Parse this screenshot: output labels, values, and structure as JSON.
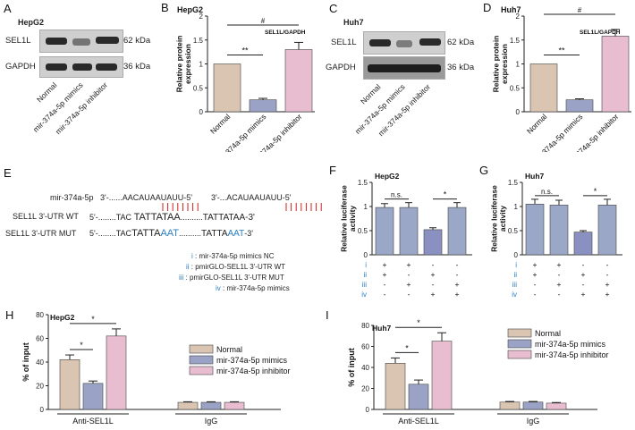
{
  "panels": {
    "A": {
      "letter": "A",
      "title": "HepG2",
      "rows": [
        {
          "name": "SEL1L",
          "size": "62 kDa"
        },
        {
          "name": "GAPDH",
          "size": "36 kDa"
        }
      ],
      "lanes": [
        "Normal",
        "mir-374a-5p mimics",
        "mir-374a-5p inhibitor"
      ]
    },
    "C": {
      "letter": "C",
      "title": "Huh7",
      "rows": [
        {
          "name": "SEL1L",
          "size": "62 kDa"
        },
        {
          "name": "GAPDH",
          "size": "36 kDa"
        }
      ],
      "lanes": [
        "Normal",
        "mir-374a-5p mimics",
        "mir-374a-5p inhibitor"
      ]
    },
    "E": {
      "letter": "E",
      "mir_label": "mir-374a-5p",
      "mir_seq1": "3'-......AACAUAAUAUU-5'",
      "mir_seq2": "3'-...ACAUAAUAUU-5'",
      "wt_label": "SEL1L 3'-UTR WT",
      "wt_seq1_pre": "5'-........TAC ",
      "wt_seq1_core": "TATTATAA",
      "wt_seq1_post": "..........",
      "wt_seq2": "TATTATAA-3'",
      "mut_label": "SEL1L 3'-UTR MUT",
      "mut_seq1_pre": "5'-........TAC",
      "mut_seq1_core": "TATTA",
      "mut_seq1_mut": "AAT",
      "mut_seq1_post": "..........",
      "mut_seq2_core": "TATTA",
      "mut_seq2_mut": "AAT",
      "mut_seq2_post": "-3'",
      "legend": [
        {
          "num": "i",
          "text": ": mir-374a-5p mimics NC"
        },
        {
          "num": "ii",
          "text": ": pmirGLO-SEL1L 3'-UTR WT"
        },
        {
          "num": "iii",
          "text": ": pmirGLO-SEL1L 3'-UTR MUT"
        },
        {
          "num": "iv",
          "text": ": mir-374a-5p mimics"
        }
      ]
    }
  },
  "colors": {
    "normal": "#d9c5b2",
    "mimics": "#9aa2c6",
    "inhibitor": "#e8bdd0",
    "luc": "#9aa7c6",
    "luc_dark": "#8a91c0",
    "blue_text": "#2a7fc1",
    "red_tick": "#d02020"
  },
  "chart_data": [
    {
      "id": "B",
      "letter": "B",
      "type": "bar",
      "title": "HepG2",
      "annotation": "SEL1L/GAPDH",
      "ylabel": "Relative protein expression",
      "ylim": [
        0,
        2
      ],
      "yticks": [
        "0",
        "0.5",
        "1",
        "1.5",
        "2"
      ],
      "categories": [
        "Normal",
        "mir-374a-5p mimics",
        "mir-374a-5p inhibitor"
      ],
      "values": [
        1.0,
        0.25,
        1.3
      ],
      "errors": [
        0,
        0.03,
        0.15
      ],
      "sig": [
        {
          "label": "**"
        },
        {
          "label": "#"
        }
      ]
    },
    {
      "id": "D",
      "letter": "D",
      "type": "bar",
      "title": "Huh7",
      "annotation": "SEL1L/GAPDH",
      "ylabel": "Relative protein expression",
      "ylim": [
        0,
        2
      ],
      "yticks": [
        "0",
        "0.5",
        "1",
        "1.5",
        "2"
      ],
      "categories": [
        "Normal",
        "mir-374a-5p mimics",
        "mir-374a-5p inhibitor"
      ],
      "values": [
        1.0,
        0.25,
        1.58
      ],
      "errors": [
        0,
        0.02,
        0.14
      ],
      "sig": [
        {
          "label": "**"
        },
        {
          "label": "#"
        }
      ]
    },
    {
      "id": "F",
      "letter": "F",
      "type": "bar",
      "title": "HepG2",
      "ylabel": "Relative luciferase activity",
      "ylim": [
        0,
        1.5
      ],
      "yticks": [
        "0",
        "0.5",
        "1",
        "1.5"
      ],
      "values": [
        0.98,
        0.98,
        0.52,
        0.98
      ],
      "errors": [
        0.08,
        0.1,
        0.04,
        0.1
      ],
      "sig": [
        {
          "label": "n.s."
        },
        {
          "label": "*"
        }
      ],
      "matrix_rows": [
        "i",
        "ii",
        "iii",
        "iv"
      ],
      "matrix": [
        [
          "+",
          "+",
          "-",
          "-"
        ],
        [
          "+",
          "-",
          "+",
          "-"
        ],
        [
          "-",
          "+",
          "-",
          "+"
        ],
        [
          "-",
          "-",
          "+",
          "+"
        ]
      ]
    },
    {
      "id": "G",
      "letter": "G",
      "type": "bar",
      "title": "Huh7",
      "ylabel": "Relative luciferase activity",
      "ylim": [
        0,
        1.5
      ],
      "yticks": [
        "0",
        "0.5",
        "1",
        "1.5"
      ],
      "values": [
        1.05,
        1.03,
        0.47,
        1.03
      ],
      "errors": [
        0.1,
        0.1,
        0.03,
        0.12
      ],
      "sig": [
        {
          "label": "n.s."
        },
        {
          "label": "*"
        }
      ],
      "matrix_rows": [
        "i",
        "ii",
        "iii",
        "iv"
      ],
      "matrix": [
        [
          "+",
          "+",
          "-",
          "-"
        ],
        [
          "+",
          "-",
          "+",
          "-"
        ],
        [
          "-",
          "+",
          "-",
          "+"
        ],
        [
          "-",
          "-",
          "+",
          "+"
        ]
      ]
    },
    {
      "id": "H",
      "letter": "H",
      "type": "bar",
      "title": "HepG2",
      "ylabel": "% of input",
      "ylim": [
        0,
        80
      ],
      "yticks": [
        "0",
        "20",
        "40",
        "60",
        "80"
      ],
      "groups": [
        "Anti-SEL1L",
        "IgG"
      ],
      "series": [
        {
          "name": "Normal",
          "values": [
            42,
            6
          ],
          "errors": [
            4,
            0.5
          ]
        },
        {
          "name": "mir-374a-5p mimics",
          "values": [
            22,
            6
          ],
          "errors": [
            2,
            0.5
          ]
        },
        {
          "name": "mir-374a-5p inhibitor",
          "values": [
            62,
            6
          ],
          "errors": [
            6,
            0.5
          ]
        }
      ],
      "sig": [
        {
          "label": "*"
        },
        {
          "label": "*"
        }
      ]
    },
    {
      "id": "I",
      "letter": "I",
      "type": "bar",
      "title": "Huh7",
      "ylabel": "% of input",
      "ylim": [
        0,
        80
      ],
      "yticks": [
        "0",
        "20",
        "40",
        "60",
        "80"
      ],
      "groups": [
        "Anti-SEL1L",
        "IgG"
      ],
      "series": [
        {
          "name": "Normal",
          "values": [
            44,
            7
          ],
          "errors": [
            5,
            0.6
          ]
        },
        {
          "name": "mir-374a-5p mimics",
          "values": [
            24,
            7
          ],
          "errors": [
            4,
            0.6
          ]
        },
        {
          "name": "mir-374a-5p inhibitor",
          "values": [
            65,
            6
          ],
          "errors": [
            8,
            0.6
          ]
        }
      ],
      "sig": [
        {
          "label": "*"
        },
        {
          "label": "*"
        }
      ]
    }
  ]
}
